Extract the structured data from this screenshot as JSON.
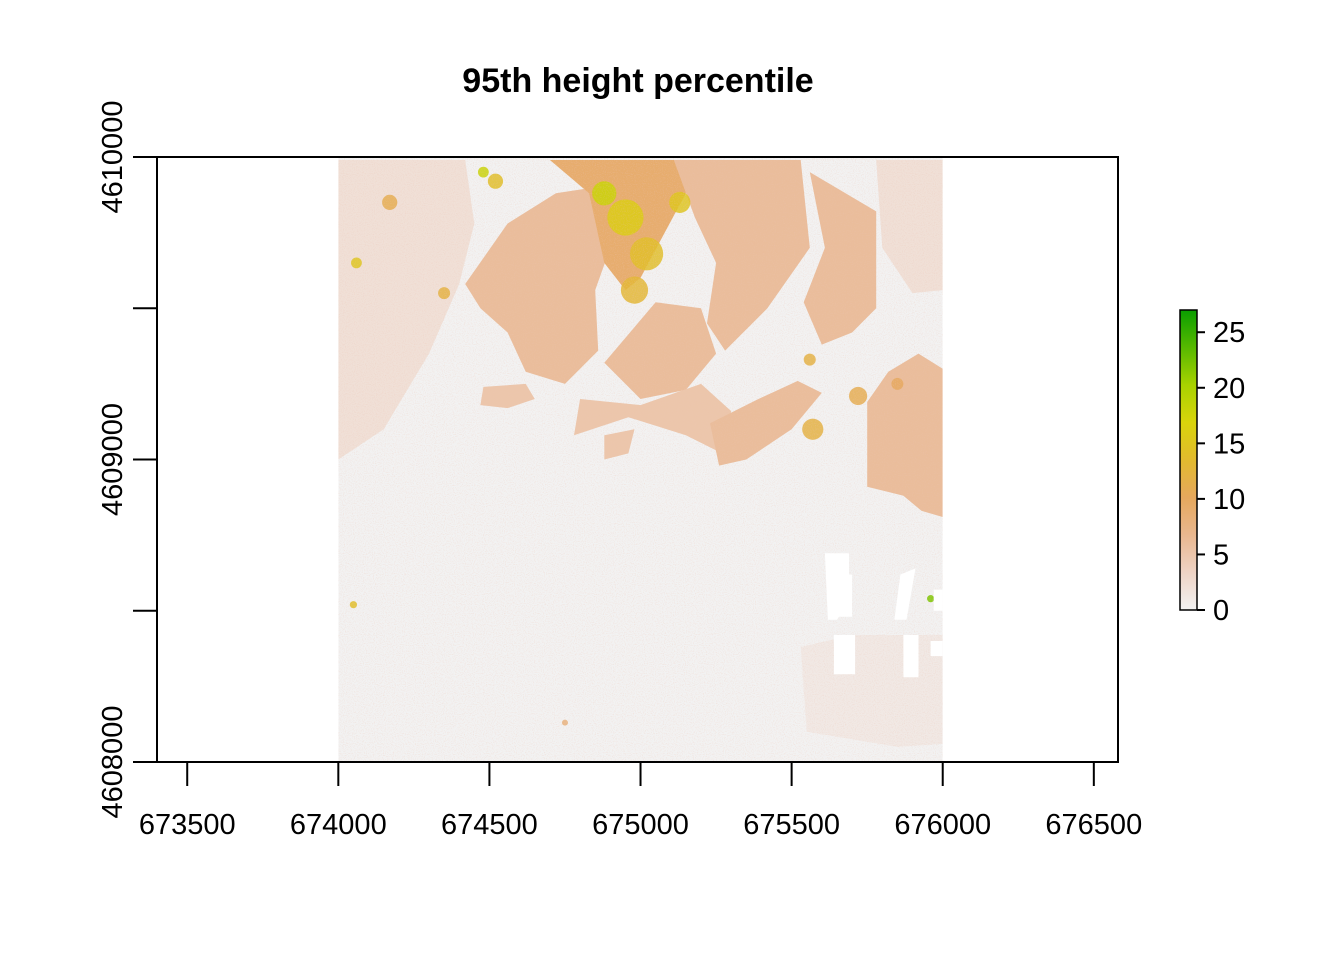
{
  "chart_data": {
    "type": "heatmap",
    "title": "95th height percentile",
    "xlabel": "",
    "ylabel": "",
    "xlim": [
      673400,
      676580
    ],
    "ylim": [
      4608000,
      4610000
    ],
    "x_ticks": [
      673500,
      674000,
      674500,
      675000,
      675500,
      676000,
      676500
    ],
    "x_tick_labels": [
      "673500",
      "674000",
      "674500",
      "675000",
      "675500",
      "676000",
      "676500"
    ],
    "y_ticks": [
      4608000,
      4608500,
      4609000,
      4609500,
      4610000
    ],
    "y_tick_labels": [
      "4608000",
      "",
      "4609000",
      "",
      "4610000"
    ],
    "raster_extent": {
      "xmin": 674000,
      "xmax": 676000,
      "ymin": 4608000,
      "ymax": 4610000
    },
    "value_range": [
      0,
      27
    ],
    "legend": {
      "position": "right",
      "ticks": [
        0,
        5,
        10,
        15,
        20,
        25
      ],
      "tick_labels": [
        "0",
        "5",
        "10",
        "15",
        "20",
        "25"
      ],
      "colors": [
        "#f2f2f2",
        "#eed3c5",
        "#e9b78f",
        "#e6a85d",
        "#e2ba2e",
        "#d9d40b",
        "#a8d200",
        "#57b900",
        "#0a9e00"
      ]
    },
    "background_color": "#f2f2f2",
    "zones": [
      {
        "name": "park-west-lobe",
        "value": 6,
        "poly": [
          [
            674420,
            4609580
          ],
          [
            674560,
            4609780
          ],
          [
            674720,
            4609880
          ],
          [
            674850,
            4609900
          ],
          [
            674900,
            4609700
          ],
          [
            674850,
            4609560
          ],
          [
            674860,
            4609360
          ],
          [
            674750,
            4609250
          ],
          [
            674620,
            4609290
          ],
          [
            674560,
            4609420
          ],
          [
            674470,
            4609500
          ]
        ]
      },
      {
        "name": "park-north-block",
        "value": 9,
        "poly": [
          [
            674700,
            4609990
          ],
          [
            675150,
            4609990
          ],
          [
            675150,
            4609880
          ],
          [
            675080,
            4609750
          ],
          [
            675000,
            4609600
          ],
          [
            674950,
            4609560
          ],
          [
            674880,
            4609650
          ],
          [
            674830,
            4609880
          ]
        ]
      },
      {
        "name": "park-north-center",
        "value": 6,
        "poly": [
          [
            675110,
            4609990
          ],
          [
            675530,
            4609990
          ],
          [
            675560,
            4609700
          ],
          [
            675420,
            4609500
          ],
          [
            675280,
            4609360
          ],
          [
            675220,
            4609450
          ],
          [
            675250,
            4609650
          ],
          [
            675180,
            4609800
          ]
        ]
      },
      {
        "name": "park-central",
        "value": 6,
        "poly": [
          [
            674880,
            4609320
          ],
          [
            675050,
            4609520
          ],
          [
            675200,
            4609500
          ],
          [
            675250,
            4609350
          ],
          [
            675150,
            4609230
          ],
          [
            675000,
            4609200
          ]
        ]
      },
      {
        "name": "park-south-arm",
        "value": 5,
        "poly": [
          [
            674780,
            4609080
          ],
          [
            674960,
            4609140
          ],
          [
            675150,
            4609080
          ],
          [
            675270,
            4609020
          ],
          [
            675300,
            4609160
          ],
          [
            675200,
            4609250
          ],
          [
            675000,
            4609180
          ],
          [
            674800,
            4609200
          ]
        ]
      },
      {
        "name": "park-east-lobe",
        "value": 6,
        "poly": [
          [
            675560,
            4609950
          ],
          [
            675780,
            4609820
          ],
          [
            675780,
            4609500
          ],
          [
            675700,
            4609420
          ],
          [
            675600,
            4609380
          ],
          [
            675540,
            4609520
          ],
          [
            675610,
            4609700
          ]
        ]
      },
      {
        "name": "park-southeast",
        "value": 6,
        "poly": [
          [
            675230,
            4609120
          ],
          [
            675390,
            4609200
          ],
          [
            675520,
            4609260
          ],
          [
            675600,
            4609220
          ],
          [
            675500,
            4609100
          ],
          [
            675350,
            4609000
          ],
          [
            675260,
            4608980
          ]
        ]
      },
      {
        "name": "park-east-strip",
        "value": 6,
        "poly": [
          [
            675750,
            4609190
          ],
          [
            675820,
            4609290
          ],
          [
            675920,
            4609350
          ],
          [
            676000,
            4609300
          ],
          [
            676000,
            4608810
          ],
          [
            675930,
            4608830
          ],
          [
            675870,
            4608880
          ],
          [
            675750,
            4608910
          ]
        ]
      },
      {
        "name": "park-southwest-tongue",
        "value": 5,
        "poly": [
          [
            674480,
            4609240
          ],
          [
            674620,
            4609250
          ],
          [
            674650,
            4609200
          ],
          [
            674560,
            4609170
          ],
          [
            674470,
            4609180
          ]
        ]
      },
      {
        "name": "park-lake-rim",
        "value": 5,
        "poly": [
          [
            674880,
            4609080
          ],
          [
            674980,
            4609100
          ],
          [
            674960,
            4609020
          ],
          [
            674880,
            4609000
          ]
        ]
      },
      {
        "name": "urban-northwest",
        "value": 2,
        "poly": [
          [
            674000,
            4609990
          ],
          [
            674420,
            4609990
          ],
          [
            674450,
            4609780
          ],
          [
            674400,
            4609580
          ],
          [
            674300,
            4609350
          ],
          [
            674150,
            4609100
          ],
          [
            674000,
            4609000
          ]
        ]
      },
      {
        "name": "urban-northeast",
        "value": 2,
        "poly": [
          [
            675780,
            4609990
          ],
          [
            676000,
            4609990
          ],
          [
            676000,
            4609560
          ],
          [
            675900,
            4609550
          ],
          [
            675800,
            4609700
          ]
        ]
      },
      {
        "name": "urban-southeast",
        "value": 1,
        "poly": [
          [
            675530,
            4608380
          ],
          [
            675700,
            4608420
          ],
          [
            676000,
            4608420
          ],
          [
            676000,
            4608060
          ],
          [
            675850,
            4608050
          ],
          [
            675550,
            4608100
          ]
        ]
      }
    ],
    "patches": [
      {
        "x": 674950,
        "y": 4609800,
        "r": 60,
        "value": 16
      },
      {
        "x": 675020,
        "y": 4609680,
        "r": 55,
        "value": 14
      },
      {
        "x": 674980,
        "y": 4609560,
        "r": 45,
        "value": 13
      },
      {
        "x": 674880,
        "y": 4609880,
        "r": 40,
        "value": 18
      },
      {
        "x": 675130,
        "y": 4609850,
        "r": 35,
        "value": 15
      },
      {
        "x": 674170,
        "y": 4609850,
        "r": 25,
        "value": 11
      },
      {
        "x": 674480,
        "y": 4609950,
        "r": 18,
        "value": 18
      },
      {
        "x": 674350,
        "y": 4609550,
        "r": 20,
        "value": 12
      },
      {
        "x": 675570,
        "y": 4609100,
        "r": 35,
        "value": 12
      },
      {
        "x": 675720,
        "y": 4609210,
        "r": 30,
        "value": 11
      },
      {
        "x": 674520,
        "y": 4609920,
        "r": 25,
        "value": 14
      },
      {
        "x": 675560,
        "y": 4609330,
        "r": 20,
        "value": 12
      },
      {
        "x": 674060,
        "y": 4609650,
        "r": 18,
        "value": 15
      },
      {
        "x": 675850,
        "y": 4609250,
        "r": 20,
        "value": 10
      },
      {
        "x": 675960,
        "y": 4608540,
        "r": 12,
        "value": 22
      },
      {
        "x": 674750,
        "y": 4608130,
        "r": 10,
        "value": 8
      },
      {
        "x": 674050,
        "y": 4608520,
        "r": 12,
        "value": 14
      }
    ],
    "buildings": [
      {
        "name": "hall-a",
        "poly": [
          [
            675610,
            4608690
          ],
          [
            675690,
            4608690
          ],
          [
            675690,
            4608530
          ],
          [
            675650,
            4608470
          ],
          [
            675620,
            4608470
          ]
        ]
      },
      {
        "name": "hall-b",
        "poly": [
          [
            675640,
            4608620
          ],
          [
            675700,
            4608620
          ],
          [
            675700,
            4608480
          ],
          [
            675640,
            4608480
          ]
        ]
      },
      {
        "name": "hall-c",
        "poly": [
          [
            675640,
            4608420
          ],
          [
            675710,
            4608420
          ],
          [
            675710,
            4608290
          ],
          [
            675640,
            4608290
          ]
        ]
      },
      {
        "name": "hall-d",
        "poly": [
          [
            675860,
            4608620
          ],
          [
            675910,
            4608640
          ],
          [
            675880,
            4608470
          ],
          [
            675840,
            4608470
          ]
        ]
      },
      {
        "name": "hall-e",
        "poly": [
          [
            675870,
            4608420
          ],
          [
            675920,
            4608420
          ],
          [
            675920,
            4608280
          ],
          [
            675870,
            4608280
          ]
        ]
      },
      {
        "name": "hall-f",
        "poly": [
          [
            675970,
            4608570
          ],
          [
            676000,
            4608570
          ],
          [
            676000,
            4608500
          ],
          [
            675970,
            4608500
          ]
        ]
      },
      {
        "name": "hall-g",
        "poly": [
          [
            675960,
            4608400
          ],
          [
            676000,
            4608400
          ],
          [
            676000,
            4608350
          ],
          [
            675960,
            4608350
          ]
        ]
      }
    ]
  }
}
